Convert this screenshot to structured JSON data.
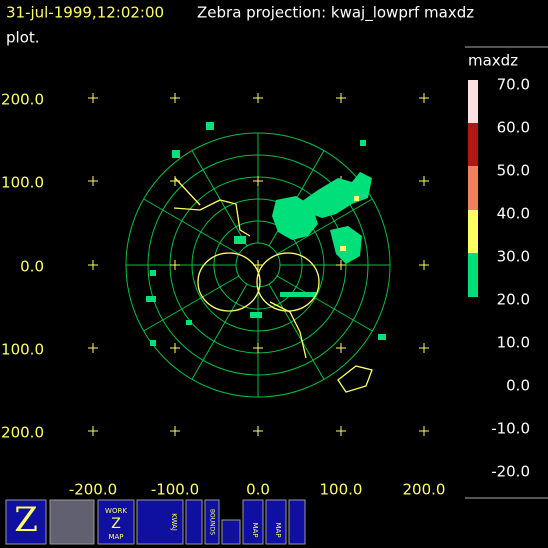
{
  "header": {
    "time": "31-jul-1999,12:02:00",
    "title": "Zebra projection: kwaj_lowprf maxdz",
    "title_cont": "plot."
  },
  "axes": {
    "y_labels": [
      "200.0",
      "100.0",
      "0.0",
      "100.0",
      "200.0"
    ],
    "x_labels": [
      "-200.0",
      "-100.0",
      "0.0",
      "100.0",
      "200.0"
    ]
  },
  "legend": {
    "field": "maxdz",
    "labels": [
      "70.0",
      "60.0",
      "50.0",
      "40.0",
      "30.0",
      "20.0",
      "10.0",
      "0.0",
      "-10.0",
      "-20.0"
    ]
  },
  "toolbar": {
    "work_map": [
      "WORK",
      "Z",
      "MAP"
    ],
    "kwaj": "KWAJ",
    "bounds": "BOUNDS",
    "map_1": "MAP",
    "map_2": "MAP"
  }
}
